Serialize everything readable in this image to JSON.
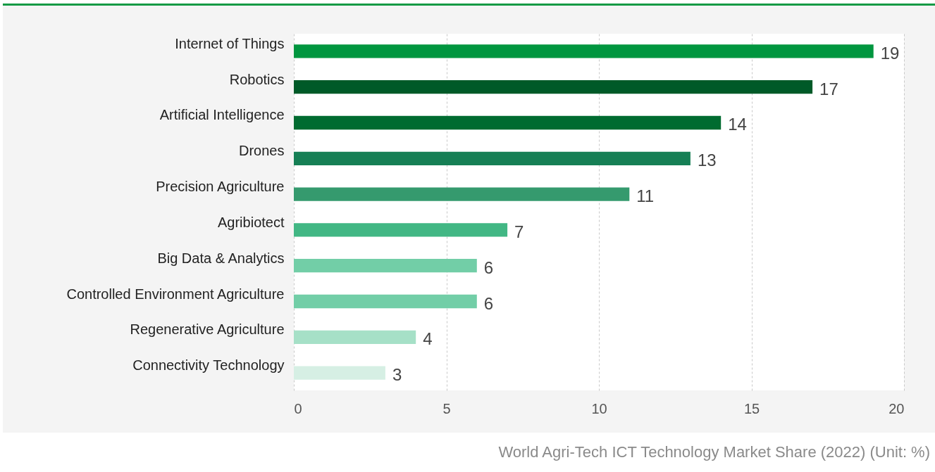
{
  "chart_data": {
    "type": "bar",
    "orientation": "horizontal",
    "categories": [
      "Internet of Things",
      "Robotics",
      "Artificial Intelligence",
      "Drones",
      "Precision Agriculture",
      "Agribiotect",
      "Big Data & Analytics",
      "Controlled Environment Agriculture",
      "Regenerative Agriculture",
      "Connectivity Technology"
    ],
    "values": [
      19,
      17,
      14,
      13,
      11,
      7,
      6,
      6,
      4,
      3
    ],
    "colors": [
      "#00963f",
      "#005a28",
      "#006b30",
      "#167f55",
      "#359a6e",
      "#42b784",
      "#72cea7",
      "#72cea7",
      "#a6e0c7",
      "#d6efe4"
    ],
    "xlim": [
      0,
      20
    ],
    "xticks": [
      0,
      5,
      10,
      15,
      20
    ],
    "grid": "x",
    "data_labels": true,
    "annotations": [
      "World Agri-Tech ICT Technology Market Share (2022) (Unit: %)"
    ]
  }
}
